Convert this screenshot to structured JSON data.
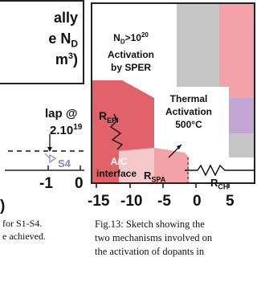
{
  "left_fig": {
    "title_line1": "ally",
    "title_line2_prefix": "e N",
    "title_line2_sub": "D",
    "title_line3": "m",
    "title_line3_sup": "3",
    "title_line3_suffix": ")",
    "overlap_line": "lap @",
    "exp_line": "2.10",
    "exp_sup": "19",
    "series_label": "S4",
    "tick_minus1": "-1",
    "tick_0": "0",
    "paren": ")",
    "caption_line1": "for  S1-S4.",
    "caption_line2": "e  achieved."
  },
  "right_fig": {
    "labels": {
      "nd_line1_prefix": "N",
      "nd_line1_sub": "D",
      "nd_line1_rest": ">10",
      "nd_line1_sup": "20",
      "nd_line2": "Activation",
      "nd_line3": "by SPER",
      "repi": "R",
      "repi_sub": "EPI",
      "thermal_line1": "Thermal",
      "thermal_line2": "Activation",
      "thermal_line3": "500°C",
      "ac_line1": "A/C",
      "ac_line2": "interface",
      "rspa": "R",
      "rspa_sub": "SPA",
      "rch": "R",
      "rch_sub": "CH"
    },
    "x_ticks": [
      "-15",
      "-10",
      "-5",
      "0",
      "5"
    ]
  },
  "caption": {
    "line1": "Fig.13: Sketch showing the",
    "line2": "two mechanisms involved on",
    "line3": "the activation of dopants in"
  },
  "colors": {
    "gray": "#c6c6c6",
    "red": "#e2626a",
    "pink": "#f3a3a7",
    "light_pink": "#f7c8ca",
    "purple": "#c4a6d4",
    "frame": "#222222"
  }
}
